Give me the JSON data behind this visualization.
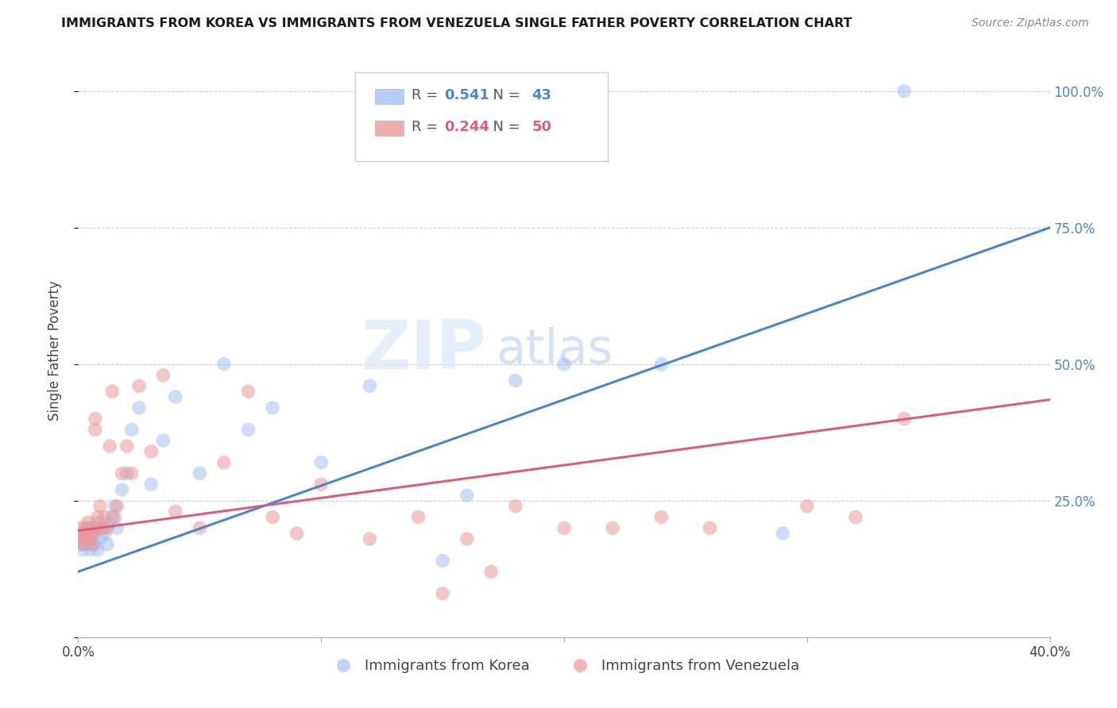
{
  "title": "IMMIGRANTS FROM KOREA VS IMMIGRANTS FROM VENEZUELA SINGLE FATHER POVERTY CORRELATION CHART",
  "source": "Source: ZipAtlas.com",
  "ylabel_label": "Single Father Poverty",
  "xlim": [
    0.0,
    0.4
  ],
  "ylim": [
    0.0,
    1.05
  ],
  "xticks": [
    0.0,
    0.1,
    0.2,
    0.3,
    0.4
  ],
  "xtick_labels": [
    "0.0%",
    "",
    "",
    "",
    "40.0%"
  ],
  "ytick_labels": [
    "",
    "25.0%",
    "50.0%",
    "75.0%",
    "100.0%"
  ],
  "yticks": [
    0.0,
    0.25,
    0.5,
    0.75,
    1.0
  ],
  "korea_R": 0.541,
  "korea_N": 43,
  "venezuela_R": 0.244,
  "venezuela_N": 50,
  "korea_color": "#a4c2f4",
  "venezuela_color": "#ea9999",
  "korea_line_color": "#4a86c8",
  "venezuela_line_color": "#d46080",
  "background_color": "#ffffff",
  "watermark_zip": "ZIP",
  "watermark_atlas": "atlas",
  "korea_x": [
    0.001,
    0.002,
    0.002,
    0.003,
    0.003,
    0.004,
    0.004,
    0.005,
    0.005,
    0.006,
    0.006,
    0.007,
    0.007,
    0.008,
    0.008,
    0.009,
    0.01,
    0.011,
    0.012,
    0.013,
    0.014,
    0.015,
    0.016,
    0.018,
    0.02,
    0.022,
    0.025,
    0.03,
    0.035,
    0.04,
    0.05,
    0.06,
    0.07,
    0.08,
    0.1,
    0.12,
    0.15,
    0.2,
    0.24,
    0.29,
    0.18,
    0.16,
    0.34
  ],
  "korea_y": [
    0.17,
    0.18,
    0.16,
    0.19,
    0.17,
    0.18,
    0.2,
    0.17,
    0.16,
    0.18,
    0.19,
    0.17,
    0.2,
    0.16,
    0.21,
    0.18,
    0.2,
    0.19,
    0.17,
    0.21,
    0.22,
    0.24,
    0.2,
    0.27,
    0.3,
    0.38,
    0.42,
    0.28,
    0.36,
    0.44,
    0.3,
    0.5,
    0.38,
    0.42,
    0.32,
    0.46,
    0.14,
    0.5,
    0.5,
    0.19,
    0.47,
    0.26,
    1.0
  ],
  "venezuela_x": [
    0.001,
    0.001,
    0.002,
    0.002,
    0.003,
    0.003,
    0.004,
    0.004,
    0.005,
    0.005,
    0.006,
    0.006,
    0.007,
    0.007,
    0.008,
    0.008,
    0.009,
    0.01,
    0.011,
    0.012,
    0.013,
    0.014,
    0.015,
    0.016,
    0.018,
    0.02,
    0.022,
    0.025,
    0.03,
    0.035,
    0.04,
    0.05,
    0.06,
    0.07,
    0.08,
    0.09,
    0.1,
    0.12,
    0.14,
    0.16,
    0.18,
    0.2,
    0.22,
    0.24,
    0.26,
    0.3,
    0.32,
    0.34,
    0.15,
    0.17
  ],
  "venezuela_y": [
    0.18,
    0.2,
    0.19,
    0.17,
    0.2,
    0.18,
    0.19,
    0.21,
    0.18,
    0.2,
    0.17,
    0.19,
    0.4,
    0.38,
    0.22,
    0.2,
    0.24,
    0.2,
    0.22,
    0.2,
    0.35,
    0.45,
    0.22,
    0.24,
    0.3,
    0.35,
    0.3,
    0.46,
    0.34,
    0.48,
    0.23,
    0.2,
    0.32,
    0.45,
    0.22,
    0.19,
    0.28,
    0.18,
    0.22,
    0.18,
    0.24,
    0.2,
    0.2,
    0.22,
    0.2,
    0.24,
    0.22,
    0.4,
    0.08,
    0.12
  ],
  "korea_line_intercept": 0.12,
  "korea_line_slope": 1.575,
  "venezuela_line_intercept": 0.195,
  "venezuela_line_slope": 0.6
}
